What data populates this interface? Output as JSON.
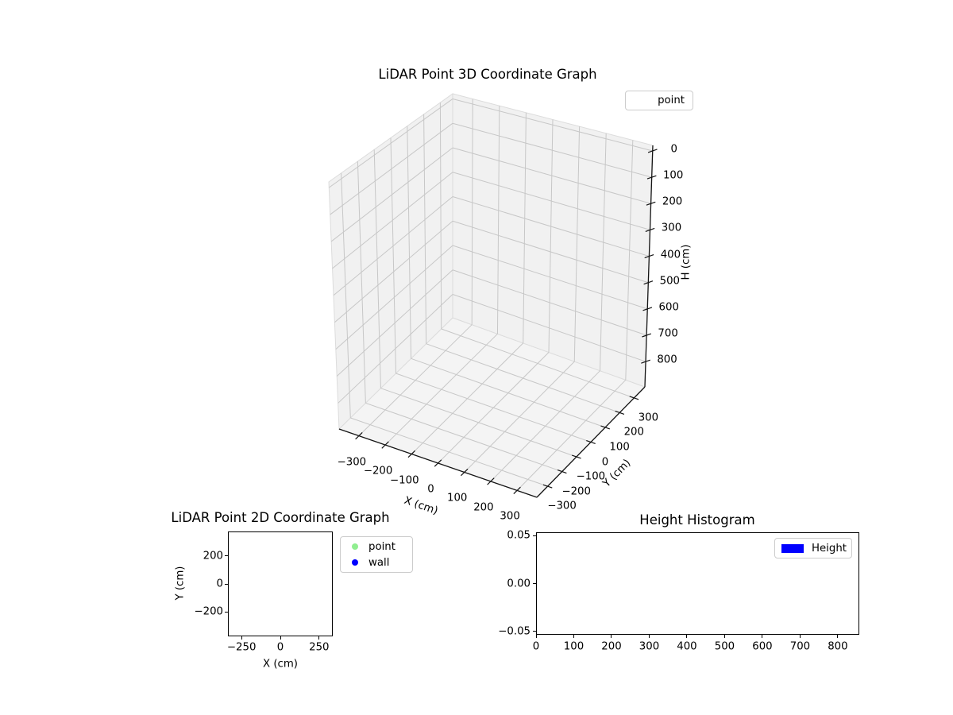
{
  "figure": {
    "background": "#ffffff"
  },
  "colors": {
    "pane_wall": "#f1f1f1",
    "pane_floor": "#f4f4f4",
    "pane_edge": "#dcdcdc",
    "grid": "#c7c7c7",
    "axis_line": "#141414",
    "text": "#000000",
    "legend_border": "#cccccc",
    "point_green": "#90EE90",
    "wall_blue": "#0000ff"
  },
  "chart_data": [
    {
      "id": "lidar-3d",
      "type": "scatter",
      "projection": "3d",
      "title": "LiDAR Point 3D Coordinate Graph",
      "xlabel": "X (cm)",
      "ylabel": "Y (cm)",
      "zlabel": "H (cm)",
      "xlim": [
        -375,
        375
      ],
      "ylim": [
        -375,
        375
      ],
      "zlim": [
        -21,
        896
      ],
      "zaxis_inverted": true,
      "grid": true,
      "xticks": [
        -300,
        -200,
        -100,
        0,
        100,
        200,
        300
      ],
      "xtick_labels": [
        "−300",
        "−200",
        "−100",
        "0",
        "100",
        "200",
        "300"
      ],
      "yticks": [
        -300,
        -200,
        -100,
        0,
        100,
        200,
        300
      ],
      "ytick_labels": [
        "−300",
        "−200",
        "−100",
        "0",
        "100",
        "200",
        "300"
      ],
      "zticks": [
        0,
        100,
        200,
        300,
        400,
        500,
        600,
        700,
        800
      ],
      "ztick_labels": [
        "0",
        "100",
        "200",
        "300",
        "400",
        "500",
        "600",
        "700",
        "800"
      ],
      "legend": {
        "position": "upper right",
        "entries": [
          {
            "label": "point",
            "marker": "none",
            "color": null
          }
        ]
      },
      "series": [
        {
          "name": "point",
          "points": []
        }
      ]
    },
    {
      "id": "lidar-2d",
      "type": "scatter",
      "title": "LiDAR Point 2D Coordinate Graph",
      "xlabel": "X (cm)",
      "ylabel": "Y (cm)",
      "xlim": [
        -338,
        338
      ],
      "ylim": [
        -372,
        372
      ],
      "grid": false,
      "xticks": [
        -250,
        0,
        250
      ],
      "xtick_labels": [
        "−250",
        "0",
        "250"
      ],
      "yticks": [
        200,
        0,
        -200
      ],
      "ytick_labels": [
        "200",
        "0",
        "−200"
      ],
      "legend": {
        "position": "outside upper right",
        "entries": [
          {
            "label": "point",
            "marker": "circle",
            "color": "#90EE90"
          },
          {
            "label": "wall",
            "marker": "circle",
            "color": "#0000ff"
          }
        ]
      },
      "series": [
        {
          "name": "point",
          "points": []
        },
        {
          "name": "wall",
          "points": []
        }
      ]
    },
    {
      "id": "height-histogram",
      "type": "bar",
      "title": "Height Histogram",
      "xlabel": "",
      "ylabel": "",
      "xlim": [
        0,
        857
      ],
      "ylim": [
        -0.0535,
        0.0535
      ],
      "grid": false,
      "xticks": [
        0,
        100,
        200,
        300,
        400,
        500,
        600,
        700,
        800
      ],
      "xtick_labels": [
        "0",
        "100",
        "200",
        "300",
        "400",
        "500",
        "600",
        "700",
        "800"
      ],
      "yticks": [
        0.05,
        0.0,
        -0.05
      ],
      "ytick_labels": [
        "0.05",
        "0.00",
        "−0.05"
      ],
      "legend": {
        "position": "upper right",
        "entries": [
          {
            "label": "Height",
            "marker": "rect",
            "color": "#0000ff"
          }
        ]
      },
      "values": []
    }
  ]
}
